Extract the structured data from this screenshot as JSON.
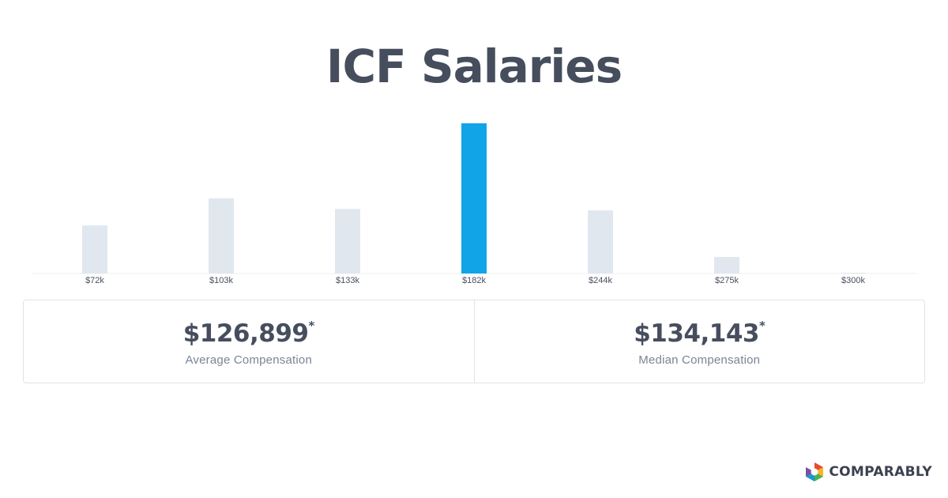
{
  "page": {
    "title": "ICF Salaries"
  },
  "chart_data": {
    "type": "bar",
    "categories": [
      "$72k",
      "$103k",
      "$133k",
      "$182k",
      "$244k",
      "$275k",
      "$300k"
    ],
    "values": [
      32,
      50,
      43,
      100,
      42,
      11,
      0.4
    ],
    "highlight_index": 3,
    "title": "",
    "xlabel": "",
    "ylabel": "",
    "ylim": [
      0,
      100
    ],
    "grid": false,
    "colors": {
      "bar": "#e1e7ee",
      "highlight": "#11a4e7",
      "baseline": "#edf0f3"
    }
  },
  "stats": {
    "average": {
      "value": "$126,899",
      "marker": "*",
      "label": "Average Compensation"
    },
    "median": {
      "value": "$134,143",
      "marker": "*",
      "label": "Median Compensation"
    }
  },
  "brand": {
    "name": "COMPARABLY",
    "icon": "comparably-logo-icon",
    "colors": [
      "#e9492f",
      "#f8b32c",
      "#49b54b",
      "#1d95d8",
      "#7a4fa3"
    ]
  }
}
